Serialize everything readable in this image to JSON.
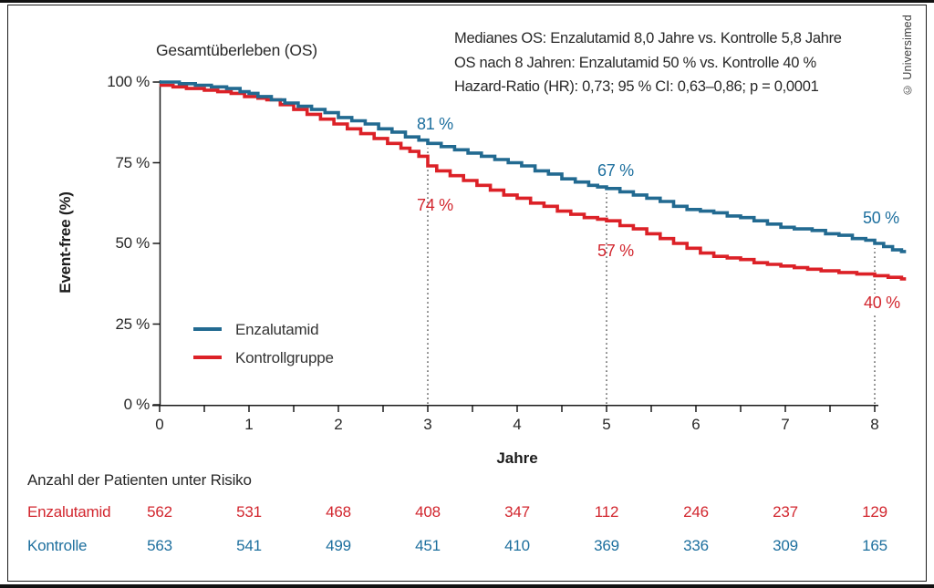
{
  "page": {
    "credit": "© Universimed"
  },
  "header": {
    "title": "Gesamtüberleben (OS)",
    "stats_lines": [
      "Medianes OS: Enzalutamid 8,0 Jahre vs. Kontrolle 5,8 Jahre",
      "OS nach 8 Jahren: Enzalutamid 50 % vs. Kontrolle 40 %",
      "Hazard-Ratio (HR): 0,73; 95 % CI: 0,63–0,86; p = 0,0001"
    ]
  },
  "legend": {
    "items": [
      {
        "label": "Enzalutamid",
        "color": "#226a91"
      },
      {
        "label": "Kontrollgruppe",
        "color": "#dc2127"
      }
    ]
  },
  "risk_table": {
    "header": "Anzahl der Patienten unter Risiko",
    "rows": [
      {
        "label": "Enzalutamid",
        "color": "#d2262e",
        "values": [
          "562",
          "531",
          "468",
          "408",
          "347",
          "112",
          "246",
          "237",
          "129"
        ]
      },
      {
        "label": "Kontrolle",
        "color": "#1d6f9e",
        "values": [
          "563",
          "541",
          "499",
          "451",
          "410",
          "369",
          "336",
          "309",
          "165"
        ]
      }
    ]
  },
  "chart_data": {
    "type": "line",
    "subtype": "kaplan-meier-step",
    "title": "Gesamtüberleben (OS)",
    "xlabel": "Jahre",
    "ylabel": "Event-free (%)",
    "xlim": [
      0,
      8.4
    ],
    "ylim": [
      0,
      100
    ],
    "x_tick_values": [
      0,
      1,
      2,
      3,
      4,
      5,
      6,
      7,
      8
    ],
    "x_tick_labels": [
      "0",
      "1",
      "2",
      "3",
      "4",
      "5",
      "6",
      "7",
      "8"
    ],
    "x_minor_tick_step": 0.5,
    "y_tick_values": [
      100,
      75,
      50,
      25,
      0
    ],
    "y_tick_labels": [
      "100 %",
      "75 %",
      "50 %",
      "25 %",
      "0 %"
    ],
    "grid": false,
    "legend_position": "inside-lower-left",
    "reference_lines_x": [
      3,
      5,
      8
    ],
    "series": [
      {
        "name": "Enzalutamid",
        "color": "#226a91",
        "points": [
          [
            0,
            100
          ],
          [
            0.22,
            99.5
          ],
          [
            0.4,
            99
          ],
          [
            0.58,
            98.5
          ],
          [
            0.75,
            98
          ],
          [
            0.9,
            97
          ],
          [
            1.0,
            96.5
          ],
          [
            1.1,
            95.5
          ],
          [
            1.25,
            94.5
          ],
          [
            1.4,
            93.5
          ],
          [
            1.55,
            92.5
          ],
          [
            1.7,
            91.5
          ],
          [
            1.85,
            90.5
          ],
          [
            2.0,
            89
          ],
          [
            2.15,
            88
          ],
          [
            2.3,
            87
          ],
          [
            2.45,
            85.5
          ],
          [
            2.6,
            84.5
          ],
          [
            2.75,
            83
          ],
          [
            2.9,
            82
          ],
          [
            3.0,
            81
          ],
          [
            3.15,
            80
          ],
          [
            3.3,
            79
          ],
          [
            3.45,
            78
          ],
          [
            3.6,
            77
          ],
          [
            3.75,
            76
          ],
          [
            3.9,
            75
          ],
          [
            4.05,
            74
          ],
          [
            4.2,
            72.5
          ],
          [
            4.35,
            71.5
          ],
          [
            4.5,
            70
          ],
          [
            4.65,
            69
          ],
          [
            4.8,
            68
          ],
          [
            4.9,
            67.5
          ],
          [
            5.0,
            67
          ],
          [
            5.15,
            66
          ],
          [
            5.3,
            65
          ],
          [
            5.45,
            64
          ],
          [
            5.6,
            63
          ],
          [
            5.75,
            61.5
          ],
          [
            5.9,
            60.5
          ],
          [
            6.05,
            60
          ],
          [
            6.2,
            59.5
          ],
          [
            6.35,
            58.5
          ],
          [
            6.5,
            58
          ],
          [
            6.65,
            57
          ],
          [
            6.8,
            56
          ],
          [
            6.95,
            55
          ],
          [
            7.1,
            54.5
          ],
          [
            7.3,
            54
          ],
          [
            7.45,
            53
          ],
          [
            7.6,
            52.5
          ],
          [
            7.75,
            51.5
          ],
          [
            7.9,
            51
          ],
          [
            8.0,
            50
          ],
          [
            8.1,
            49
          ],
          [
            8.2,
            48
          ],
          [
            8.3,
            47.5
          ],
          [
            8.35,
            47.5
          ]
        ]
      },
      {
        "name": "Kontrollgruppe",
        "color": "#dc2127",
        "points": [
          [
            0,
            99
          ],
          [
            0.15,
            98.5
          ],
          [
            0.3,
            98
          ],
          [
            0.5,
            97.5
          ],
          [
            0.65,
            97
          ],
          [
            0.8,
            96.5
          ],
          [
            0.95,
            95.5
          ],
          [
            1.1,
            95
          ],
          [
            1.2,
            94.5
          ],
          [
            1.35,
            93
          ],
          [
            1.5,
            91.5
          ],
          [
            1.65,
            90
          ],
          [
            1.8,
            88.5
          ],
          [
            1.95,
            87
          ],
          [
            2.1,
            85.5
          ],
          [
            2.25,
            84
          ],
          [
            2.4,
            82.5
          ],
          [
            2.55,
            81
          ],
          [
            2.7,
            79.5
          ],
          [
            2.8,
            78.5
          ],
          [
            2.9,
            77
          ],
          [
            3.0,
            74
          ],
          [
            3.1,
            72.5
          ],
          [
            3.25,
            71
          ],
          [
            3.4,
            69.5
          ],
          [
            3.55,
            68
          ],
          [
            3.7,
            66.5
          ],
          [
            3.85,
            65
          ],
          [
            4.0,
            64
          ],
          [
            4.15,
            62.5
          ],
          [
            4.3,
            61.5
          ],
          [
            4.45,
            60
          ],
          [
            4.6,
            59
          ],
          [
            4.75,
            58
          ],
          [
            4.9,
            57.5
          ],
          [
            5.0,
            57
          ],
          [
            5.15,
            55.5
          ],
          [
            5.3,
            54.5
          ],
          [
            5.45,
            53
          ],
          [
            5.6,
            51.5
          ],
          [
            5.75,
            50
          ],
          [
            5.9,
            48.5
          ],
          [
            6.05,
            47
          ],
          [
            6.2,
            46
          ],
          [
            6.35,
            45.5
          ],
          [
            6.5,
            45
          ],
          [
            6.65,
            44
          ],
          [
            6.8,
            43.5
          ],
          [
            6.95,
            43
          ],
          [
            7.1,
            42.5
          ],
          [
            7.25,
            42
          ],
          [
            7.4,
            41.5
          ],
          [
            7.6,
            41
          ],
          [
            7.8,
            40.5
          ],
          [
            8.0,
            40
          ],
          [
            8.15,
            39.5
          ],
          [
            8.3,
            39
          ],
          [
            8.35,
            39
          ]
        ]
      }
    ],
    "annotations": [
      {
        "id": "enza-3y",
        "series": "Enzalutamid",
        "t": 3,
        "value": 81,
        "text": "81 %"
      },
      {
        "id": "ctrl-3y",
        "series": "Kontrollgruppe",
        "t": 3,
        "value": 74,
        "text": "74 %"
      },
      {
        "id": "enza-5y",
        "series": "Enzalutamid",
        "t": 5,
        "value": 67,
        "text": "67 %"
      },
      {
        "id": "ctrl-5y",
        "series": "Kontrollgruppe",
        "t": 5,
        "value": 57,
        "text": "57 %"
      },
      {
        "id": "enza-8y",
        "series": "Enzalutamid",
        "t": 8,
        "value": 50,
        "text": "50 %"
      },
      {
        "id": "ctrl-8y",
        "series": "Kontrollgruppe",
        "t": 8,
        "value": 40,
        "text": "40 %"
      }
    ]
  }
}
